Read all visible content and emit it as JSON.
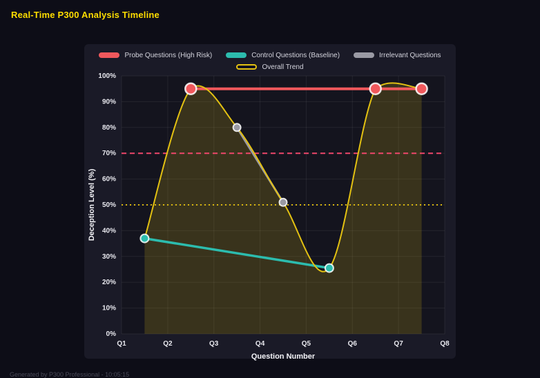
{
  "header": {
    "title": "Real-Time P300 Analysis Timeline"
  },
  "footer": {
    "note": "Generated by P300 Professional - 10:05:15"
  },
  "chart_data": {
    "type": "line",
    "title": "Real-Time P300 Analysis Timeline",
    "xlabel": "Question Number",
    "ylabel": "Deception Level (%)",
    "xlim": [
      1,
      8
    ],
    "ylim": [
      0,
      100
    ],
    "x_tick_values": [
      1,
      2,
      3,
      4,
      5,
      6,
      7,
      8
    ],
    "x_tick_labels": [
      "Q1",
      "Q2",
      "Q3",
      "Q4",
      "Q5",
      "Q6",
      "Q7",
      "Q8"
    ],
    "y_tick_step": 10,
    "y_tick_suffix": "%",
    "grid": true,
    "legend_position": "top",
    "series": [
      {
        "name": "Probe Questions (High Risk)",
        "color": "#f0585c",
        "line_width": 4,
        "point_radius": 8,
        "smooth": false,
        "x": [
          2.5,
          6.5,
          7.5
        ],
        "y": [
          95,
          95,
          95
        ]
      },
      {
        "name": "Control Questions (Baseline)",
        "color": "#2cbcae",
        "line_width": 3.5,
        "point_radius": 6,
        "smooth": false,
        "x": [
          1.5,
          5.5
        ],
        "y": [
          37,
          25.5
        ]
      },
      {
        "name": "Irrelevant Questions",
        "color": "#9a9aa4",
        "line_width": 3,
        "point_radius": 5.5,
        "smooth": false,
        "x": [
          3.5,
          4.5
        ],
        "y": [
          80,
          51
        ]
      },
      {
        "name": "Overall Trend",
        "color": "#e3c112",
        "line_width": 2,
        "point_radius": 0,
        "smooth": true,
        "hollow_legend": true,
        "fill": "rgba(227,193,23,0.18)",
        "x": [
          1.5,
          2.5,
          3.5,
          4.5,
          5.5,
          6.5,
          7.5
        ],
        "y": [
          37,
          95,
          80,
          51,
          25.5,
          95,
          95
        ]
      }
    ],
    "thresholds": [
      {
        "value": 70,
        "color": "#f0476b",
        "dash": "7,5",
        "width": 2
      },
      {
        "value": 50,
        "color": "#d9b70f",
        "dash": "2,4",
        "width": 2
      }
    ],
    "colors": {
      "page_background": "#0d0d17",
      "panel_background": "#1a1a27",
      "grid": "rgba(255,255,255,0.07)",
      "tick_label": "#e8e8ee",
      "axis_title": "#f2f2f6",
      "title": "#ffdd00",
      "point_border": "rgba(255,255,255,0.85)"
    }
  }
}
